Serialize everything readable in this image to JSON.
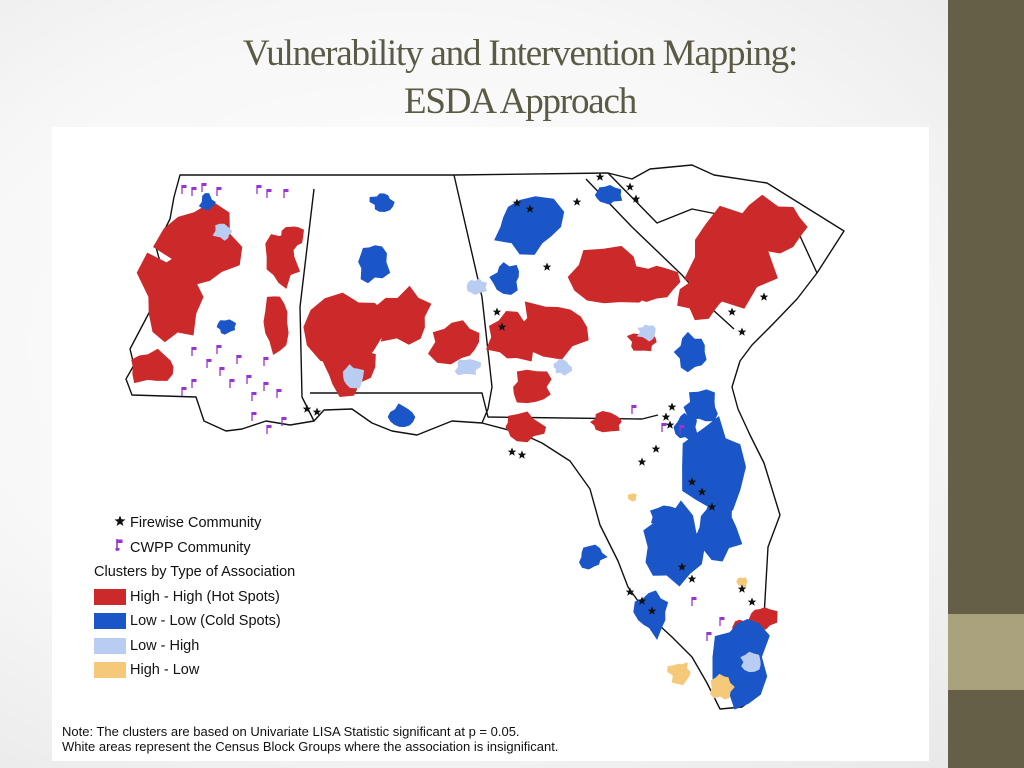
{
  "slide": {
    "title_line1": "Vulnerability and Intervention Mapping:",
    "title_line2": "ESDA Approach"
  },
  "legend": {
    "symbols": [
      {
        "label": "Firewise Community",
        "icon": "black-star-icon"
      },
      {
        "label": "CWPP Community",
        "icon": "purple-flag-icon"
      }
    ],
    "heading": "Clusters by Type of Association",
    "classes": [
      {
        "label": "High - High (Hot Spots)",
        "color": "#cc2a2a"
      },
      {
        "label": "Low - Low (Cold Spots)",
        "color": "#1a56c8"
      },
      {
        "label": "Low - High",
        "color": "#b9cdf2"
      },
      {
        "label": "High - Low",
        "color": "#f5c979"
      }
    ]
  },
  "note": {
    "line1": "Note: The clusters are based on Univariate LISA Statistic significant at p = 0.05.",
    "line2": "White areas represent the Census Block Groups where the association is insignificant."
  },
  "colors": {
    "hot": "#cc2a2a",
    "cold": "#1a56c8",
    "low_high": "#b9cdf2",
    "high_low": "#f5c979",
    "cwpp": "#9a33d4",
    "firewise": "#111111",
    "band": "#665f47",
    "accent": "#a9a27c"
  }
}
